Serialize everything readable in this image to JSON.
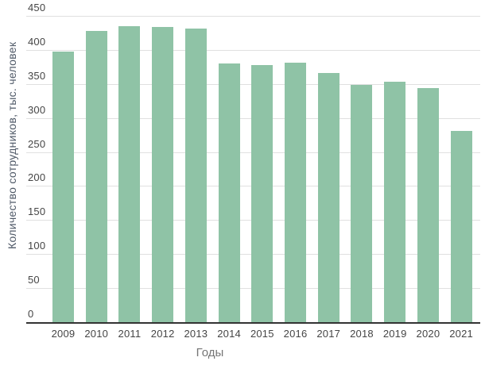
{
  "chart_data": {
    "type": "bar",
    "title": "",
    "categories": [
      "2009",
      "2010",
      "2011",
      "2012",
      "2013",
      "2014",
      "2015",
      "2016",
      "2017",
      "2018",
      "2019",
      "2020",
      "2021"
    ],
    "values": [
      398,
      428,
      435,
      434,
      431,
      380,
      378,
      381,
      366,
      349,
      353,
      344,
      281
    ],
    "xlabel": "Годы",
    "ylabel": "Количество сотрудников, тыс. человек",
    "ylim": [
      0,
      450
    ],
    "yticks": [
      0,
      50,
      100,
      150,
      200,
      250,
      300,
      350,
      400,
      450
    ],
    "grid": true,
    "legend": "none",
    "colors": {
      "bar": "#8fc3a6",
      "gridline": "#e0e0e0",
      "axis_line": "#333333",
      "tick_label": "#454545",
      "x_axis_title": "#757575",
      "y_axis_title": "#505a68",
      "background": "#ffffff"
    }
  }
}
